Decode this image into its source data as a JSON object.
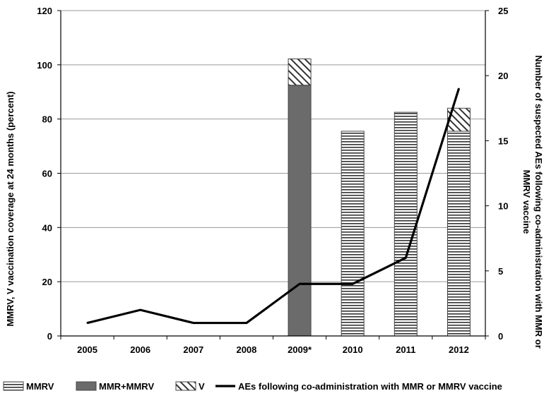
{
  "chart_data": {
    "type": "bar",
    "categories": [
      "2005",
      "2006",
      "2007",
      "2008",
      "2009*",
      "2010",
      "2011",
      "2012"
    ],
    "series": [
      {
        "name": "MMRV",
        "kind": "stacked-bar",
        "axis": "left",
        "values": [
          0,
          0,
          0,
          0,
          0,
          75.5,
          82.5,
          75.5
        ]
      },
      {
        "name": "MMR+MMRV",
        "kind": "stacked-bar",
        "axis": "left",
        "values": [
          0,
          0,
          0,
          0,
          92.5,
          0,
          0,
          0
        ]
      },
      {
        "name": "V",
        "kind": "stacked-bar",
        "axis": "left",
        "values": [
          0,
          0,
          0,
          0,
          9.7,
          0,
          0,
          8.5
        ]
      },
      {
        "name": "AEs following co-administration with MMR or MMRV vaccine",
        "kind": "line",
        "axis": "right",
        "values": [
          1,
          2,
          1,
          1,
          4,
          4,
          6,
          19
        ]
      }
    ],
    "ylabel": "MMRV, V vaccination coverage at 24 months (percent)",
    "y2label": "Number of suspected AEs  following co-administration with MMR or MMRV vaccine",
    "ylim": [
      0,
      120
    ],
    "yticks": [
      0,
      20,
      40,
      60,
      80,
      100,
      120
    ],
    "y2lim": [
      0,
      25
    ],
    "y2ticks": [
      0,
      5,
      10,
      15,
      20,
      25
    ],
    "grid": true,
    "legend_position": "bottom",
    "colors": {
      "MMRV": "#ffffff",
      "MMR+MMRV": "#6b6b6b",
      "V": "#ffffff",
      "line": "#000000",
      "grid": "#9a9a9a",
      "stripe": "#333333"
    }
  }
}
